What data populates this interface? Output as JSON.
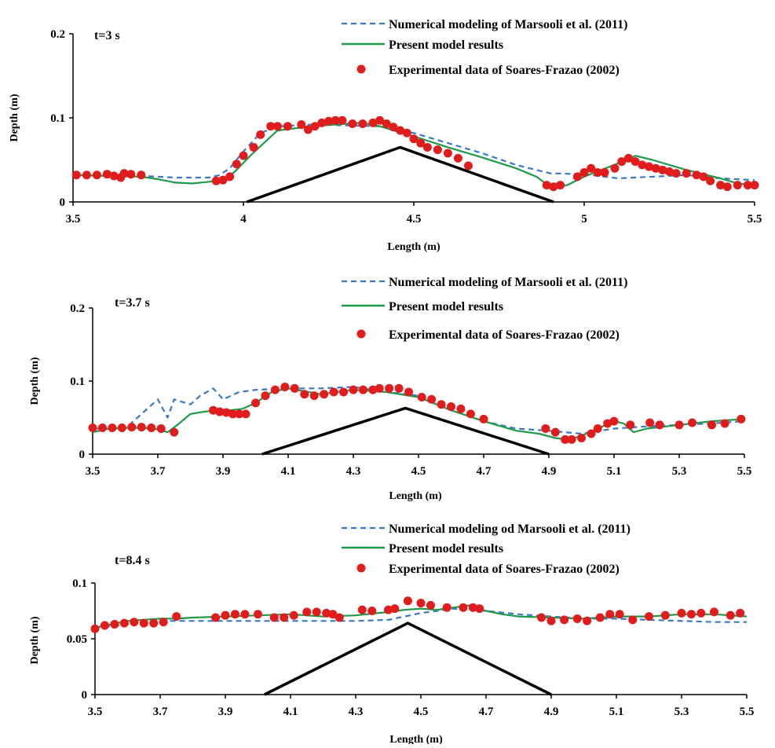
{
  "chart_data": [
    {
      "type": "line",
      "time_label": "t=3 s",
      "xlabel": "Length (m)",
      "ylabel": "Depth (m)",
      "xlim": [
        3.5,
        5.5
      ],
      "ylim": [
        0,
        0.2
      ],
      "xticks": [
        3.5,
        4,
        4.5,
        5,
        5.5
      ],
      "xtick_labels": [
        "3.5",
        "4",
        "4.5",
        "5",
        "5.5"
      ],
      "yticks": [
        0,
        0.1,
        0.2
      ],
      "ytick_labels": [
        "0",
        "0.1",
        "0.2"
      ],
      "legend": {
        "placement": "top-right",
        "entries": [
          {
            "label": "Numerical modeling of Marsooli et al. (2011)",
            "style": "dashed"
          },
          {
            "label": "Present model results",
            "style": "solid"
          },
          {
            "label": "Experimental data of Soares-Frazao (2002)",
            "style": "marker"
          }
        ]
      },
      "obstacle": {
        "x": [
          4.01,
          4.46,
          4.91
        ],
        "y": [
          0,
          0.065,
          0
        ]
      },
      "series": [
        {
          "label_index": 0,
          "x": [
            3.5,
            3.6,
            3.7,
            3.8,
            3.9,
            3.93,
            3.96,
            4.0,
            4.05,
            4.1,
            4.2,
            4.3,
            4.4,
            4.5,
            4.6,
            4.7,
            4.8,
            4.9,
            5.0,
            5.1,
            5.2,
            5.3,
            5.4,
            5.5
          ],
          "y": [
            0.032,
            0.031,
            0.031,
            0.029,
            0.029,
            0.032,
            0.04,
            0.06,
            0.082,
            0.09,
            0.092,
            0.091,
            0.09,
            0.082,
            0.07,
            0.058,
            0.044,
            0.034,
            0.033,
            0.028,
            0.03,
            0.032,
            0.028,
            0.026
          ]
        },
        {
          "label_index": 1,
          "x": [
            3.5,
            3.6,
            3.7,
            3.75,
            3.8,
            3.85,
            3.9,
            3.95,
            3.98,
            4.02,
            4.06,
            4.1,
            4.2,
            4.3,
            4.35,
            4.4,
            4.5,
            4.6,
            4.7,
            4.8,
            4.86,
            4.9,
            4.95,
            5.0,
            5.05,
            5.1,
            5.15,
            5.2,
            5.3,
            5.4,
            5.45,
            5.5
          ],
          "y": [
            0.032,
            0.031,
            0.03,
            0.027,
            0.023,
            0.022,
            0.024,
            0.027,
            0.038,
            0.055,
            0.07,
            0.085,
            0.09,
            0.093,
            0.094,
            0.09,
            0.078,
            0.065,
            0.053,
            0.04,
            0.03,
            0.018,
            0.02,
            0.03,
            0.038,
            0.046,
            0.055,
            0.05,
            0.038,
            0.028,
            0.022,
            0.02
          ]
        },
        {
          "label_index": 2,
          "x": [
            3.51,
            3.54,
            3.57,
            3.6,
            3.62,
            3.64,
            3.65,
            3.67,
            3.7,
            3.92,
            3.94,
            3.96,
            3.98,
            4.0,
            4.03,
            4.05,
            4.08,
            4.1,
            4.13,
            4.17,
            4.19,
            4.21,
            4.23,
            4.25,
            4.27,
            4.29,
            4.32,
            4.35,
            4.38,
            4.4,
            4.42,
            4.44,
            4.46,
            4.48,
            4.5,
            4.52,
            4.54,
            4.57,
            4.6,
            4.63,
            4.66,
            4.89,
            4.91,
            4.93,
            4.98,
            5.0,
            5.02,
            5.04,
            5.06,
            5.09,
            5.11,
            5.13,
            5.15,
            5.17,
            5.19,
            5.21,
            5.23,
            5.25,
            5.27,
            5.3,
            5.33,
            5.35,
            5.37,
            5.4,
            5.42,
            5.45,
            5.48,
            5.5
          ],
          "y": [
            0.032,
            0.032,
            0.032,
            0.033,
            0.031,
            0.029,
            0.034,
            0.033,
            0.032,
            0.025,
            0.026,
            0.03,
            0.045,
            0.055,
            0.065,
            0.08,
            0.09,
            0.09,
            0.09,
            0.092,
            0.086,
            0.09,
            0.094,
            0.096,
            0.097,
            0.097,
            0.093,
            0.093,
            0.094,
            0.097,
            0.093,
            0.089,
            0.085,
            0.082,
            0.075,
            0.07,
            0.065,
            0.062,
            0.058,
            0.052,
            0.043,
            0.02,
            0.018,
            0.02,
            0.03,
            0.035,
            0.04,
            0.035,
            0.035,
            0.04,
            0.048,
            0.052,
            0.048,
            0.044,
            0.042,
            0.04,
            0.038,
            0.036,
            0.034,
            0.034,
            0.032,
            0.03,
            0.025,
            0.02,
            0.018,
            0.02,
            0.02,
            0.02
          ]
        }
      ]
    },
    {
      "type": "line",
      "time_label": "t=3.7 s",
      "xlabel": "Length (m)",
      "ylabel": "Depth (m)",
      "xlim": [
        3.5,
        5.5
      ],
      "ylim": [
        0,
        0.2
      ],
      "xticks": [
        3.5,
        3.7,
        3.9,
        4.1,
        4.3,
        4.5,
        4.7,
        4.9,
        5.1,
        5.3,
        5.5
      ],
      "xtick_labels": [
        "3.5",
        "3.7",
        "3.9",
        "4.1",
        "4.3",
        "4.5",
        "4.7",
        "4.9",
        "5.1",
        "5.3",
        "5.5"
      ],
      "yticks": [
        0,
        0.1,
        0.2
      ],
      "ytick_labels": [
        "0",
        "0.1",
        "0.2"
      ],
      "legend": {
        "placement": "top-right",
        "entries": [
          {
            "label": "Numerical modeling of Marsooli et al. (2011)",
            "style": "dashed"
          },
          {
            "label": "Present model results",
            "style": "solid"
          },
          {
            "label": "Experimental data of Soares-Frazao (2002)",
            "style": "marker"
          }
        ]
      },
      "obstacle": {
        "x": [
          4.02,
          4.46,
          4.9
        ],
        "y": [
          0,
          0.063,
          0
        ]
      },
      "series": [
        {
          "label_index": 0,
          "x": [
            3.5,
            3.6,
            3.65,
            3.7,
            3.73,
            3.75,
            3.8,
            3.83,
            3.87,
            3.9,
            3.95,
            4.0,
            4.1,
            4.2,
            4.3,
            4.4,
            4.5,
            4.6,
            4.7,
            4.8,
            4.9,
            5.0,
            5.1,
            5.2,
            5.3,
            5.4,
            5.5
          ],
          "y": [
            0.035,
            0.035,
            0.055,
            0.075,
            0.05,
            0.075,
            0.068,
            0.08,
            0.09,
            0.075,
            0.085,
            0.088,
            0.09,
            0.09,
            0.092,
            0.085,
            0.08,
            0.06,
            0.045,
            0.035,
            0.032,
            0.028,
            0.035,
            0.038,
            0.04,
            0.042,
            0.045
          ]
        },
        {
          "label_index": 1,
          "x": [
            3.5,
            3.55,
            3.6,
            3.65,
            3.7,
            3.73,
            3.76,
            3.8,
            3.84,
            3.88,
            3.92,
            3.96,
            4.0,
            4.05,
            4.1,
            4.2,
            4.3,
            4.4,
            4.5,
            4.6,
            4.7,
            4.8,
            4.87,
            4.92,
            4.96,
            5.0,
            5.05,
            5.1,
            5.13,
            5.16,
            5.2,
            5.3,
            5.4,
            5.5
          ],
          "y": [
            0.03,
            0.035,
            0.036,
            0.036,
            0.034,
            0.03,
            0.04,
            0.055,
            0.058,
            0.06,
            0.06,
            0.062,
            0.07,
            0.085,
            0.09,
            0.082,
            0.088,
            0.085,
            0.078,
            0.06,
            0.045,
            0.032,
            0.028,
            0.022,
            0.02,
            0.025,
            0.035,
            0.045,
            0.042,
            0.03,
            0.035,
            0.04,
            0.045,
            0.048
          ]
        },
        {
          "label_index": 2,
          "x": [
            3.5,
            3.53,
            3.56,
            3.59,
            3.62,
            3.65,
            3.68,
            3.71,
            3.75,
            3.87,
            3.89,
            3.91,
            3.93,
            3.95,
            3.97,
            4.0,
            4.03,
            4.06,
            4.09,
            4.12,
            4.15,
            4.18,
            4.21,
            4.24,
            4.27,
            4.3,
            4.33,
            4.36,
            4.38,
            4.41,
            4.44,
            4.47,
            4.51,
            4.54,
            4.57,
            4.6,
            4.63,
            4.66,
            4.7,
            4.89,
            4.92,
            4.95,
            4.97,
            5.0,
            5.03,
            5.05,
            5.08,
            5.1,
            5.15,
            5.21,
            5.24,
            5.3,
            5.34,
            5.4,
            5.44,
            5.49
          ],
          "y": [
            0.036,
            0.036,
            0.036,
            0.036,
            0.037,
            0.037,
            0.036,
            0.035,
            0.03,
            0.06,
            0.058,
            0.057,
            0.055,
            0.055,
            0.055,
            0.07,
            0.08,
            0.088,
            0.092,
            0.09,
            0.082,
            0.08,
            0.082,
            0.085,
            0.085,
            0.088,
            0.088,
            0.088,
            0.09,
            0.09,
            0.09,
            0.085,
            0.078,
            0.075,
            0.068,
            0.065,
            0.062,
            0.055,
            0.048,
            0.035,
            0.03,
            0.02,
            0.02,
            0.022,
            0.028,
            0.035,
            0.042,
            0.045,
            0.04,
            0.043,
            0.04,
            0.04,
            0.043,
            0.04,
            0.042,
            0.048
          ]
        }
      ]
    },
    {
      "type": "line",
      "time_label": "t=8.4 s",
      "xlabel": "Length (m)",
      "ylabel": "Depth (m)",
      "xlim": [
        3.5,
        5.5
      ],
      "ylim": [
        0,
        0.1
      ],
      "xticks": [
        3.5,
        3.7,
        3.9,
        4.1,
        4.3,
        4.5,
        4.7,
        4.9,
        5.1,
        5.3,
        5.5
      ],
      "xtick_labels": [
        "3.5",
        "3.7",
        "3.9",
        "4.1",
        "4.3",
        "4.5",
        "4.7",
        "4.9",
        "5.1",
        "5.3",
        "5.5"
      ],
      "yticks": [
        0,
        0.05,
        0.1
      ],
      "ytick_labels": [
        "0",
        "0.05",
        "0.1"
      ],
      "legend": {
        "placement": "top-right",
        "entries": [
          {
            "label": "Numerical modeling od Marsooli et al. (2011)",
            "style": "dashed"
          },
          {
            "label": "Present model results",
            "style": "solid"
          },
          {
            "label": "Experimental data of Soares-Frazao (2002)",
            "style": "marker"
          }
        ]
      },
      "obstacle": {
        "x": [
          4.02,
          4.46,
          4.9
        ],
        "y": [
          0,
          0.064,
          0
        ]
      },
      "series": [
        {
          "label_index": 0,
          "x": [
            3.5,
            3.6,
            3.7,
            3.8,
            3.9,
            4.0,
            4.1,
            4.2,
            4.3,
            4.4,
            4.5,
            4.6,
            4.7,
            4.8,
            4.9,
            5.0,
            5.1,
            5.2,
            5.3,
            5.4,
            5.5
          ],
          "y": [
            0.06,
            0.063,
            0.066,
            0.066,
            0.066,
            0.066,
            0.066,
            0.066,
            0.066,
            0.067,
            0.073,
            0.077,
            0.075,
            0.072,
            0.07,
            0.068,
            0.068,
            0.067,
            0.066,
            0.065,
            0.065
          ]
        },
        {
          "label_index": 1,
          "x": [
            3.5,
            3.55,
            3.6,
            3.7,
            3.75,
            3.8,
            3.9,
            4.0,
            4.1,
            4.2,
            4.3,
            4.4,
            4.45,
            4.5,
            4.55,
            4.6,
            4.65,
            4.7,
            4.75,
            4.8,
            4.9,
            5.0,
            5.1,
            5.2,
            5.3,
            5.4,
            5.5
          ],
          "y": [
            0.06,
            0.063,
            0.066,
            0.068,
            0.068,
            0.069,
            0.07,
            0.071,
            0.072,
            0.07,
            0.071,
            0.074,
            0.076,
            0.077,
            0.076,
            0.078,
            0.08,
            0.075,
            0.072,
            0.07,
            0.069,
            0.068,
            0.07,
            0.07,
            0.072,
            0.072,
            0.07
          ]
        },
        {
          "label_index": 2,
          "x": [
            3.5,
            3.53,
            3.56,
            3.59,
            3.62,
            3.65,
            3.68,
            3.71,
            3.75,
            3.87,
            3.9,
            3.93,
            3.96,
            4.0,
            4.05,
            4.08,
            4.11,
            4.15,
            4.18,
            4.21,
            4.23,
            4.25,
            4.32,
            4.35,
            4.4,
            4.42,
            4.46,
            4.5,
            4.53,
            4.58,
            4.63,
            4.66,
            4.68,
            4.87,
            4.9,
            4.94,
            4.98,
            5.01,
            5.05,
            5.08,
            5.11,
            5.15,
            5.2,
            5.25,
            5.3,
            5.33,
            5.36,
            5.4,
            5.45,
            5.48
          ],
          "y": [
            0.059,
            0.062,
            0.063,
            0.064,
            0.065,
            0.064,
            0.064,
            0.065,
            0.07,
            0.069,
            0.071,
            0.072,
            0.072,
            0.072,
            0.069,
            0.069,
            0.071,
            0.074,
            0.074,
            0.073,
            0.072,
            0.069,
            0.076,
            0.075,
            0.076,
            0.077,
            0.084,
            0.082,
            0.08,
            0.078,
            0.078,
            0.078,
            0.077,
            0.069,
            0.066,
            0.067,
            0.068,
            0.066,
            0.069,
            0.072,
            0.072,
            0.067,
            0.07,
            0.071,
            0.073,
            0.072,
            0.073,
            0.074,
            0.071,
            0.073
          ]
        }
      ]
    }
  ],
  "colors": {
    "numerical": "#3a78c4",
    "model": "#1d9a4a",
    "experimental": "#e01c1c",
    "obstacle": "#000000",
    "axis": "#000000"
  }
}
